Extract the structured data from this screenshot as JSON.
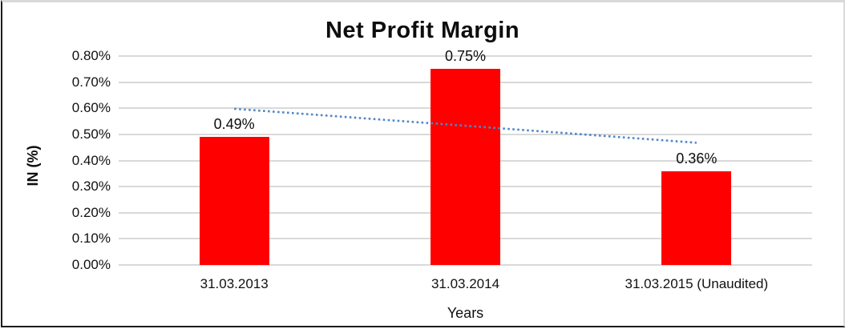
{
  "chart_data": {
    "type": "bar",
    "title": "Net Profit Margin",
    "xlabel": "Years",
    "ylabel": "IN (%)",
    "categories": [
      "31.03.2013",
      "31.03.2014",
      "31.03.2015 (Unaudited)"
    ],
    "values": [
      0.49,
      0.75,
      0.36
    ],
    "data_labels": [
      "0.49%",
      "0.75%",
      "0.36%"
    ],
    "y_tick_labels": [
      "0.00%",
      "0.10%",
      "0.20%",
      "0.30%",
      "0.40%",
      "0.50%",
      "0.60%",
      "0.70%",
      "0.80%"
    ],
    "ylim": [
      0,
      0.8
    ],
    "grid": true,
    "legend": false,
    "bar_color": "#ff0000",
    "gridline_color": "#d9d9d9",
    "trendline": {
      "style": "dotted",
      "color": "#4e86c8",
      "start_value": 0.598,
      "end_value": 0.468
    }
  }
}
